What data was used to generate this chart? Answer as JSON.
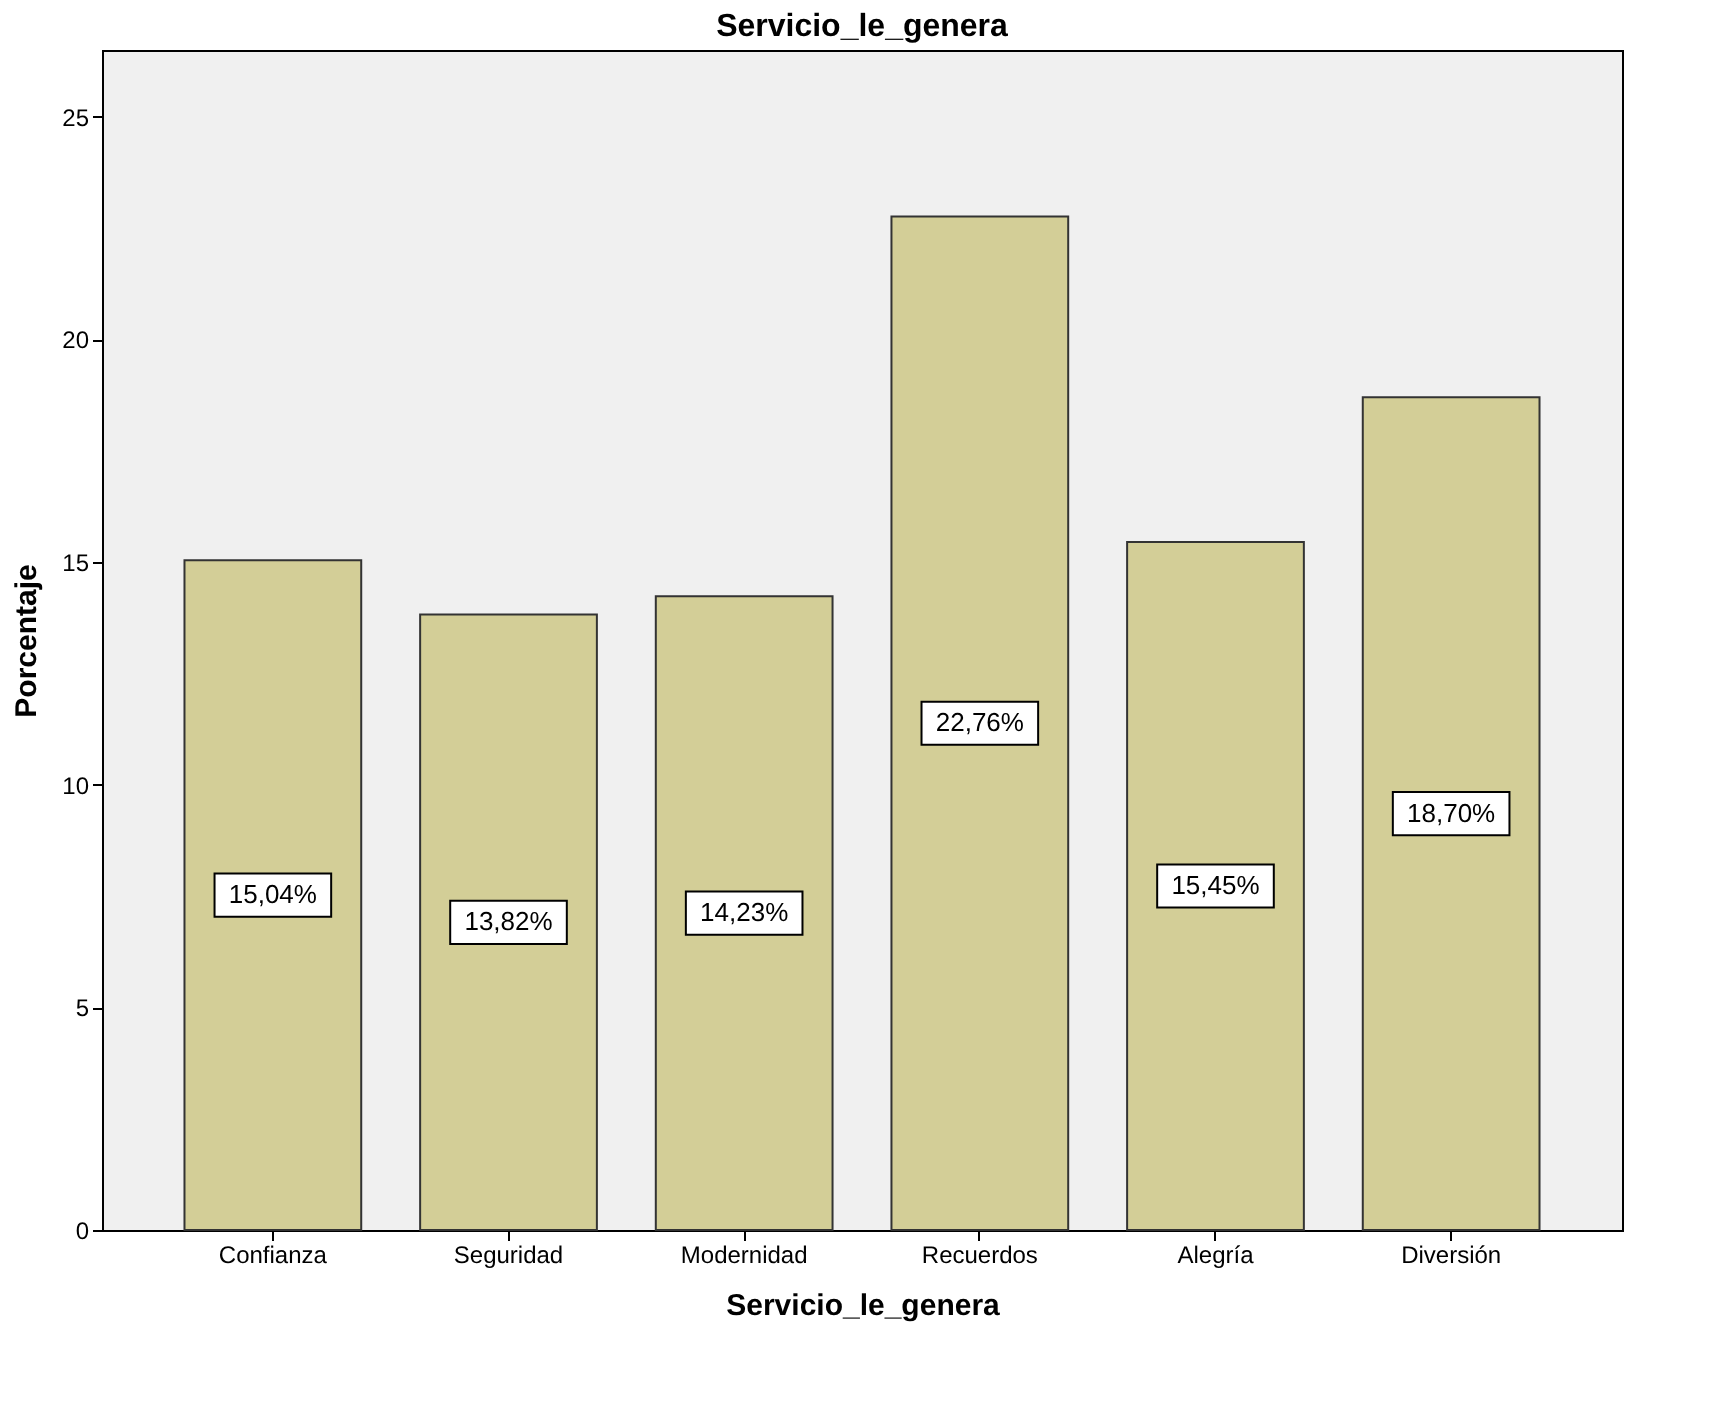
{
  "chart_data": {
    "type": "bar",
    "title": "Servicio_le_genera",
    "xlabel": "Servicio_le_genera",
    "ylabel": "Porcentaje",
    "categories": [
      "Confianza",
      "Seguridad",
      "Modernidad",
      "Recuerdos",
      "Alegría",
      "Diversión"
    ],
    "values": [
      15.04,
      13.82,
      14.23,
      22.76,
      15.45,
      18.7
    ],
    "value_labels": [
      "15,04%",
      "13,82%",
      "14,23%",
      "22,76%",
      "15,45%",
      "18,70%"
    ],
    "color": "#d3ce97",
    "ylim": [
      0,
      26.5
    ],
    "yticks": [
      0,
      5,
      10,
      15,
      20,
      25
    ],
    "grid": false
  }
}
